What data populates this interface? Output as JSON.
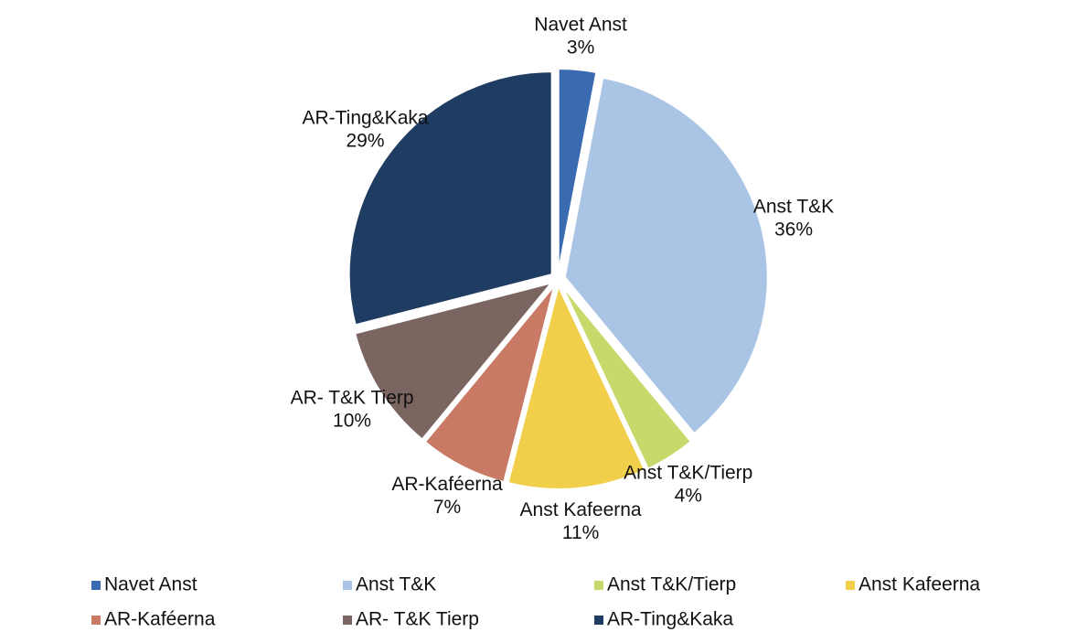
{
  "chart_data": {
    "type": "pie",
    "categories": [
      "Navet Anst",
      "Anst T&K",
      "Anst T&K/Tierp",
      "Anst Kafeerna",
      "AR-Kaféerna",
      "AR- T&K Tierp",
      "AR-Ting&Kaka"
    ],
    "values": [
      3,
      36,
      4,
      11,
      7,
      10,
      29
    ],
    "value_labels": [
      "3%",
      "36%",
      "4%",
      "11%",
      "7%",
      "10%",
      "29%"
    ],
    "colors": [
      "#3a6ab0",
      "#a9c4e4",
      "#c8d86a",
      "#f2cf4a",
      "#c97a64",
      "#7a6560",
      "#1f3d63"
    ],
    "legend": "bottom"
  }
}
